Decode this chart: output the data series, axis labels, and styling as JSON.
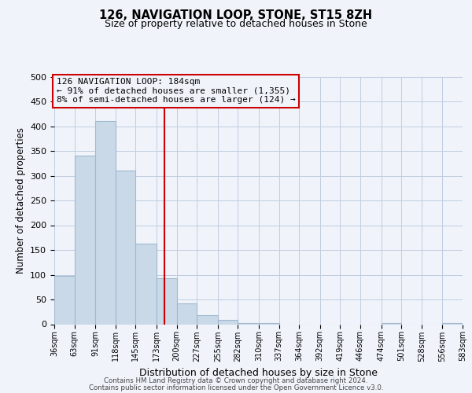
{
  "title": "126, NAVIGATION LOOP, STONE, ST15 8ZH",
  "subtitle": "Size of property relative to detached houses in Stone",
  "xlabel": "Distribution of detached houses by size in Stone",
  "ylabel": "Number of detached properties",
  "bin_edges": [
    36,
    63,
    91,
    118,
    145,
    173,
    200,
    227,
    255,
    282,
    310,
    337,
    364,
    392,
    419,
    446,
    474,
    501,
    528,
    556,
    583
  ],
  "bar_heights": [
    97,
    341,
    410,
    310,
    163,
    93,
    42,
    19,
    8,
    3,
    2,
    0,
    0,
    0,
    0,
    0,
    2,
    0,
    0,
    2
  ],
  "bar_color": "#c9d9e8",
  "bar_edge_color": "#a0b8d0",
  "property_size": 184,
  "vline_color": "#cc0000",
  "annotation_box_color": "#cc0000",
  "annotation_title": "126 NAVIGATION LOOP: 184sqm",
  "annotation_line1": "← 91% of detached houses are smaller (1,355)",
  "annotation_line2": "8% of semi-detached houses are larger (124) →",
  "ylim": [
    0,
    500
  ],
  "yticks": [
    0,
    50,
    100,
    150,
    200,
    250,
    300,
    350,
    400,
    450,
    500
  ],
  "footer_line1": "Contains HM Land Registry data © Crown copyright and database right 2024.",
  "footer_line2": "Contains public sector information licensed under the Open Government Licence v3.0.",
  "bg_color": "#f0f4fa",
  "grid_color": "#c0cce0"
}
